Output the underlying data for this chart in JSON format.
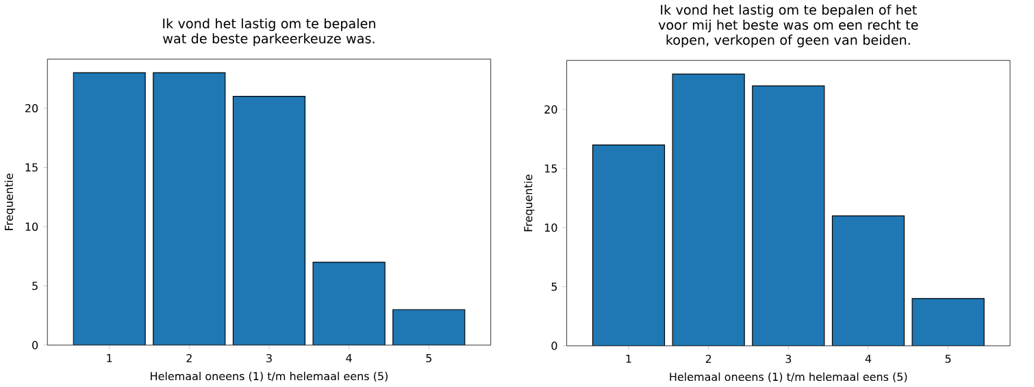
{
  "chart_data": [
    {
      "type": "bar",
      "title": "Ik vond het lastig om te bepalen wat de beste parkeerkeuze was.",
      "xlabel": "Helemaal oneens (1) t/m helemaal eens (5)",
      "ylabel": "Frequentie",
      "categories": [
        "1",
        "2",
        "3",
        "4",
        "5"
      ],
      "values": [
        23,
        23,
        21,
        7,
        3
      ],
      "color": "#1f77b4",
      "ylim": [
        0,
        24.15
      ],
      "yticks": [
        0,
        5,
        10,
        15,
        20
      ]
    },
    {
      "type": "bar",
      "title": "Ik vond het lastig om te bepalen of het voor mij het beste was om een recht te kopen, verkopen of geen van beiden.",
      "xlabel": "Helemaal oneens (1) t/m helemaal eens (5)",
      "ylabel": "Frequentie",
      "categories": [
        "1",
        "2",
        "3",
        "4",
        "5"
      ],
      "values": [
        17,
        23,
        22,
        11,
        4
      ],
      "color": "#1f77b4",
      "ylim": [
        0,
        24.15
      ],
      "yticks": [
        0,
        5,
        10,
        15,
        20
      ]
    }
  ]
}
